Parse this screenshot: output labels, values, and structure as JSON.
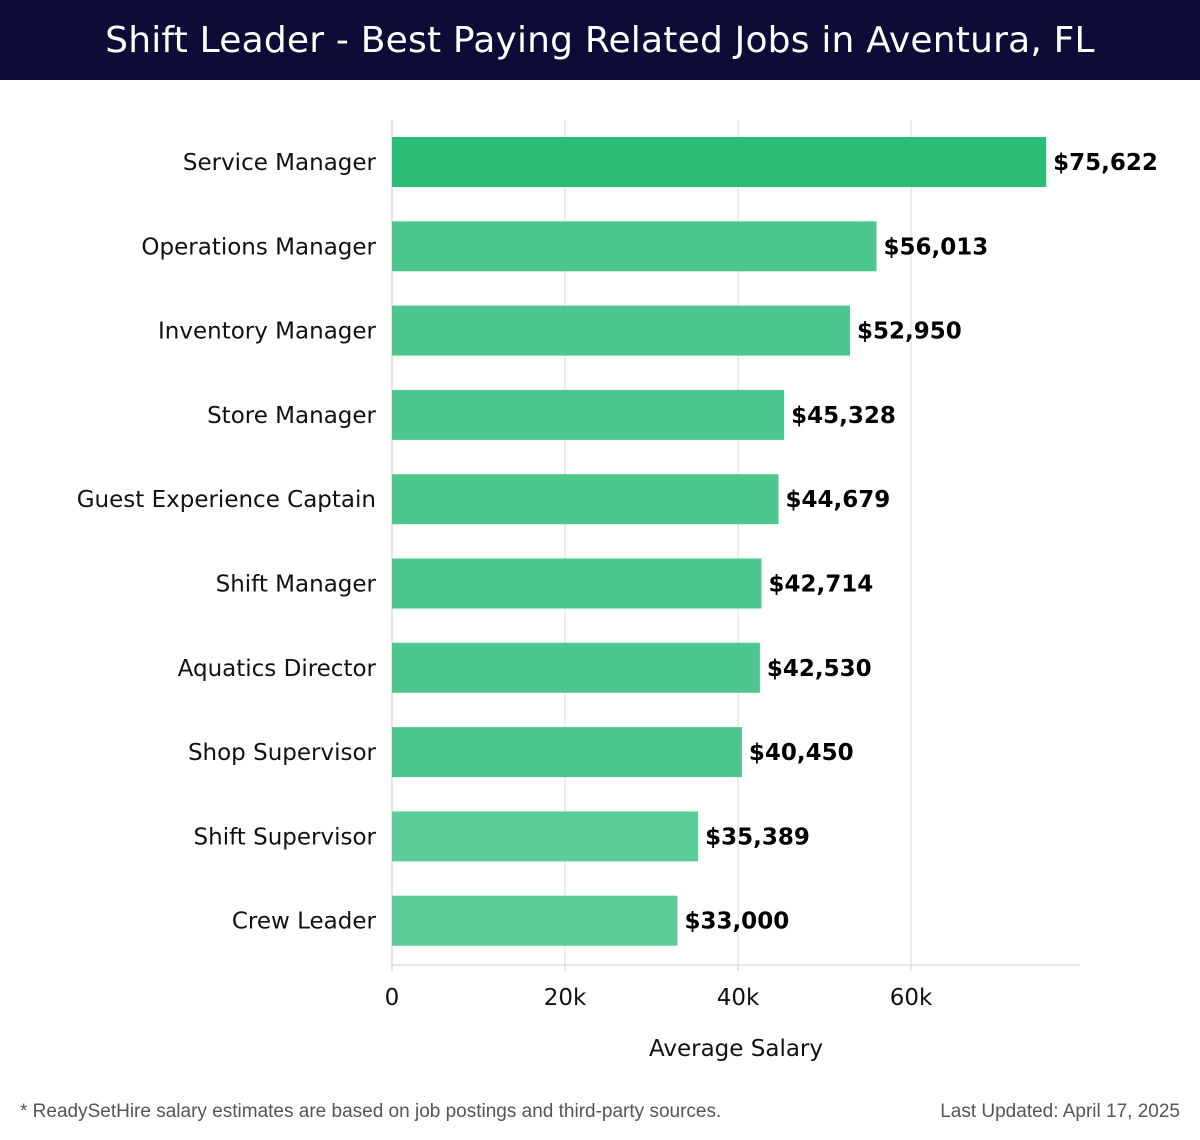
{
  "page": {
    "title": "Shift Leader - Best Paying Related Jobs in Aventura, FL"
  },
  "chart_data": {
    "type": "bar",
    "orientation": "horizontal",
    "categories": [
      "Service Manager",
      "Operations Manager",
      "Inventory Manager",
      "Store Manager",
      "Guest Experience Captain",
      "Shift Manager",
      "Aquatics Director",
      "Shop Supervisor",
      "Shift Supervisor",
      "Crew Leader"
    ],
    "values": [
      75622,
      56013,
      52950,
      45328,
      44679,
      42714,
      42530,
      40450,
      35389,
      33000
    ],
    "value_labels": [
      "$75,622",
      "$56,013",
      "$52,950",
      "$45,328",
      "$44,679",
      "$42,714",
      "$42,530",
      "$40,450",
      "$35,389",
      "$33,000"
    ],
    "xlabel": "Average Salary",
    "ylabel": "",
    "xlim": [
      0,
      80000
    ],
    "xticks": [
      0,
      20000,
      40000,
      60000
    ],
    "xtick_labels": [
      "0",
      "20k",
      "40k",
      "60k"
    ],
    "grid": true,
    "colors": {
      "bar_top": "#2bbd75",
      "bar": "#4ec78f",
      "bar_light": "#5ccd98",
      "grid": "#dddddd",
      "axis": "#cccccc"
    }
  },
  "footer": {
    "note": "* ReadySetHire salary estimates are based on job postings and third-party sources.",
    "updated": "Last Updated: April 17, 2025"
  }
}
